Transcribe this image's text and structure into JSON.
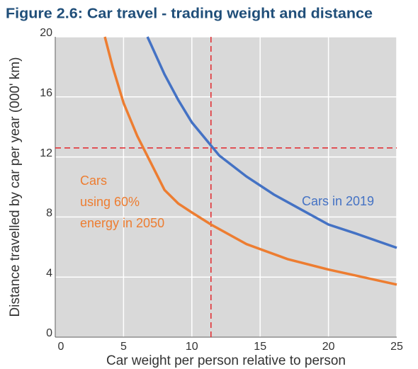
{
  "chart_data": {
    "type": "line",
    "title": "Figure 2.6: Car travel - trading weight and distance",
    "xlabel": "Car weight per person relative to person",
    "ylabel": "Distance travelled by car per year (000' km)",
    "xlim": [
      0,
      25
    ],
    "xticks": [
      0,
      5,
      10,
      15,
      20,
      25
    ],
    "ylim": [
      0,
      20
    ],
    "yticks": [
      0,
      4,
      8,
      12,
      16,
      20
    ],
    "grid": true,
    "reference_lines": {
      "x": 11.4,
      "y": 12.6,
      "color": "#e3262b"
    },
    "series": [
      {
        "name": "Cars in 2019",
        "color": "#4472c4",
        "x": [
          6.75,
          7,
          8,
          9,
          10,
          12,
          14,
          16,
          18,
          20,
          22,
          25
        ],
        "values": [
          20,
          19.5,
          17.5,
          15.8,
          14.3,
          12.1,
          10.7,
          9.5,
          8.5,
          7.5,
          6.9,
          5.95
        ]
      },
      {
        "name_lines": [
          "Cars",
          "using 60%",
          "energy in 2050"
        ],
        "color": "#ed7d31",
        "x": [
          3.63,
          4.2,
          5,
          6,
          7,
          8,
          9,
          10,
          11.4,
          14,
          17,
          20,
          22,
          25
        ],
        "values": [
          20,
          18,
          15.6,
          13.4,
          11.6,
          9.8,
          8.9,
          8.3,
          7.5,
          6.2,
          5.2,
          4.5,
          4.1,
          3.5
        ]
      }
    ]
  }
}
